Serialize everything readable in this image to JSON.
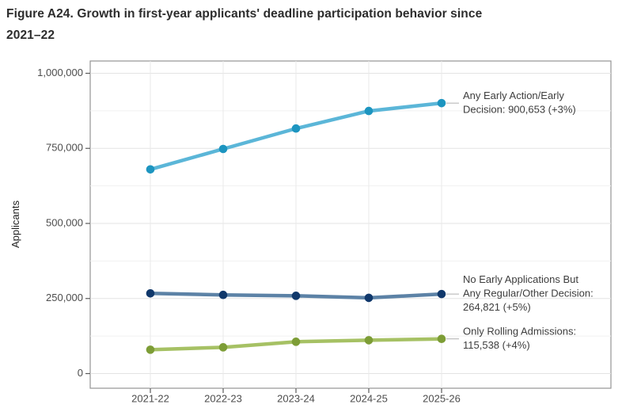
{
  "figure": {
    "title_line1": "Figure A24. Growth in first-year applicants' deadline participation behavior since",
    "title_line2": "2021–22"
  },
  "chart_data": {
    "type": "line",
    "title": "Figure A24. Growth in first-year applicants' deadline participation behavior since 2021–22",
    "xlabel": "",
    "ylabel": "Applicants",
    "categories": [
      "2021-22",
      "2022-23",
      "2023-24",
      "2024-25",
      "2025-26"
    ],
    "ylim": [
      0,
      1000000
    ],
    "yticks": [
      {
        "value": 0,
        "label": "0"
      },
      {
        "value": 250000,
        "label": "250,000"
      },
      {
        "value": 500000,
        "label": "500,000"
      },
      {
        "value": 750000,
        "label": "750,000"
      },
      {
        "value": 1000000,
        "label": "1,000,000"
      }
    ],
    "minor_yticks": [
      125000,
      375000,
      625000,
      875000
    ],
    "grid": true,
    "legend_position": "right-annotations",
    "series": [
      {
        "id": "any-early",
        "name": "Any Early Action/Early Decision",
        "values": [
          680000,
          748000,
          816000,
          874420,
          900653
        ],
        "line_color": "#5bb6d8",
        "marker_color": "#1d95c0",
        "annotation_lines": [
          "Any Early Action/Early",
          "Decision: 900,653 (+3%)"
        ],
        "final_value_label": "900,653 (+3%)"
      },
      {
        "id": "no-early",
        "name": "No Early Applications But Any Regular/Other Decision",
        "values": [
          267000,
          262000,
          259000,
          252210,
          264821
        ],
        "line_color": "#5c82a6",
        "marker_color": "#10386b",
        "annotation_lines": [
          "No Early Applications But",
          "Any Regular/Other Decision:",
          "264,821 (+5%)"
        ],
        "final_value_label": "264,821 (+5%)"
      },
      {
        "id": "rolling-only",
        "name": "Only Rolling Admissions",
        "values": [
          79500,
          87500,
          106000,
          111094,
          115538
        ],
        "line_color": "#a6c164",
        "marker_color": "#7d9d36",
        "annotation_lines": [
          "Only Rolling Admissions:",
          "115,538 (+4%)"
        ],
        "final_value_label": "115,538 (+4%)"
      }
    ],
    "annotation_text_color": "#3d3d3d",
    "axis_text_color": "#4c4c4c"
  }
}
